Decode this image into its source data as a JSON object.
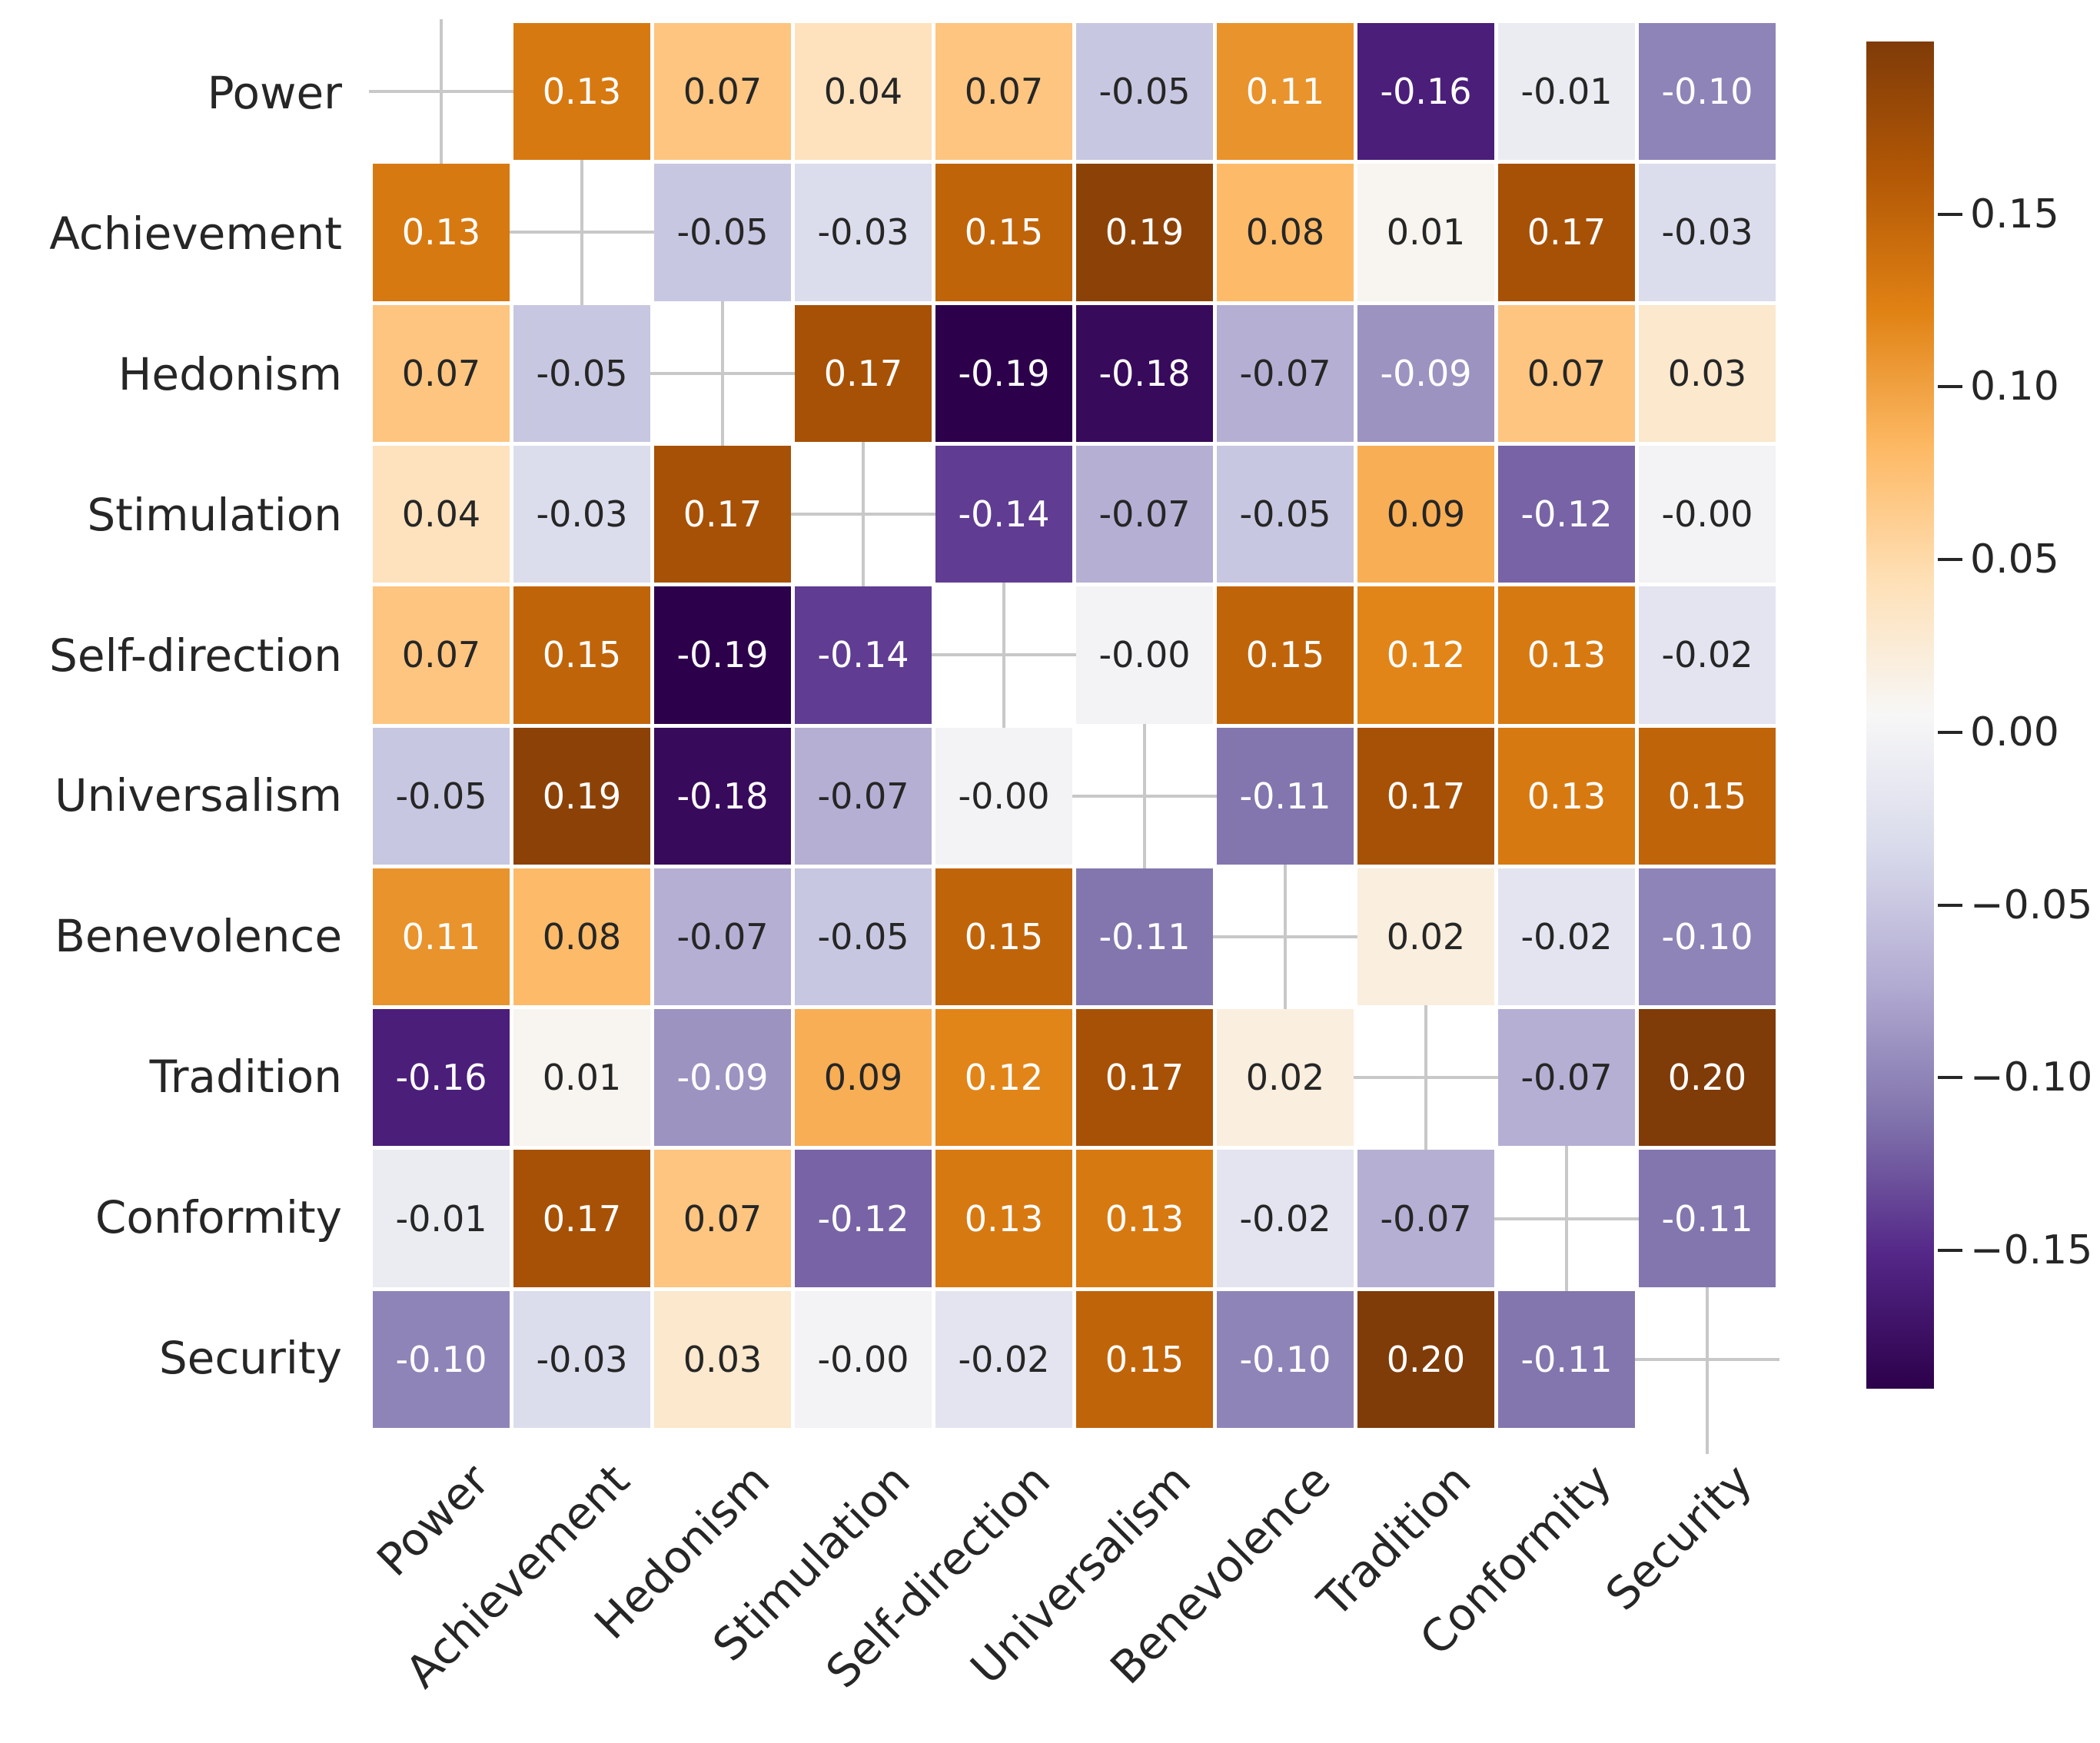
{
  "chart_data": {
    "type": "heatmap",
    "title": "",
    "xlabel": "",
    "ylabel": "",
    "categories": [
      "Power",
      "Achievement",
      "Hedonism",
      "Stimulation",
      "Self-direction",
      "Universalism",
      "Benevolence",
      "Tradition",
      "Conformity",
      "Security"
    ],
    "matrix": [
      [
        null,
        0.13,
        0.07,
        0.04,
        0.07,
        -0.05,
        0.11,
        -0.16,
        -0.01,
        -0.1
      ],
      [
        0.13,
        null,
        -0.05,
        -0.03,
        0.15,
        0.19,
        0.08,
        0.01,
        0.17,
        -0.03
      ],
      [
        0.07,
        -0.05,
        null,
        0.17,
        -0.19,
        -0.18,
        -0.07,
        -0.09,
        0.07,
        0.03
      ],
      [
        0.04,
        -0.03,
        0.17,
        null,
        -0.14,
        -0.07,
        -0.05,
        0.09,
        -0.12,
        -0.0
      ],
      [
        0.07,
        0.15,
        -0.19,
        -0.14,
        null,
        -0.0,
        0.15,
        0.12,
        0.13,
        -0.02
      ],
      [
        -0.05,
        0.19,
        -0.18,
        -0.07,
        -0.0,
        null,
        -0.11,
        0.17,
        0.13,
        0.15
      ],
      [
        0.11,
        0.08,
        -0.07,
        -0.05,
        0.15,
        -0.11,
        null,
        0.02,
        -0.02,
        -0.1
      ],
      [
        -0.16,
        0.01,
        -0.09,
        0.09,
        0.12,
        0.17,
        0.02,
        null,
        -0.07,
        0.2
      ],
      [
        -0.01,
        0.17,
        0.07,
        -0.12,
        0.13,
        0.13,
        -0.02,
        -0.07,
        null,
        -0.11
      ],
      [
        -0.1,
        -0.03,
        0.03,
        -0.0,
        -0.02,
        0.15,
        -0.1,
        0.2,
        -0.11,
        null
      ]
    ],
    "annotations": [
      [
        "",
        "0.13",
        "0.07",
        "0.04",
        "0.07",
        "-0.05",
        "0.11",
        "-0.16",
        "-0.01",
        "-0.10"
      ],
      [
        "0.13",
        "",
        "-0.05",
        "-0.03",
        "0.15",
        "0.19",
        "0.08",
        "0.01",
        "0.17",
        "-0.03"
      ],
      [
        "0.07",
        "-0.05",
        "",
        "0.17",
        "-0.19",
        "-0.18",
        "-0.07",
        "-0.09",
        "0.07",
        "0.03"
      ],
      [
        "0.04",
        "-0.03",
        "0.17",
        "",
        "-0.14",
        "-0.07",
        "-0.05",
        "0.09",
        "-0.12",
        "-0.00"
      ],
      [
        "0.07",
        "0.15",
        "-0.19",
        "-0.14",
        "",
        "-0.00",
        "0.15",
        "0.12",
        "0.13",
        "-0.02"
      ],
      [
        "-0.05",
        "0.19",
        "-0.18",
        "-0.07",
        "-0.00",
        "",
        "-0.11",
        "0.17",
        "0.13",
        "0.15"
      ],
      [
        "0.11",
        "0.08",
        "-0.07",
        "-0.05",
        "0.15",
        "-0.11",
        "",
        "0.02",
        "-0.02",
        "-0.10"
      ],
      [
        "-0.16",
        "0.01",
        "-0.09",
        "0.09",
        "0.12",
        "0.17",
        "0.02",
        "",
        "-0.07",
        "0.20"
      ],
      [
        "-0.01",
        "0.17",
        "0.07",
        "-0.12",
        "0.13",
        "0.13",
        "-0.02",
        "-0.07",
        "",
        "-0.11"
      ],
      [
        "-0.10",
        "-0.03",
        "0.03",
        "-0.00",
        "-0.02",
        "0.15",
        "-0.10",
        "0.20",
        "-0.11",
        ""
      ]
    ],
    "colormap": {
      "name": "PuOr_r",
      "vmin": -0.19,
      "vmax": 0.2,
      "stops_low_to_high": [
        "#2d004b",
        "#542788",
        "#8073ac",
        "#b2abd2",
        "#d8daeb",
        "#f7f7f7",
        "#fee0b6",
        "#fdb863",
        "#e08214",
        "#b35806",
        "#7f3b08"
      ]
    },
    "colorbar": {
      "position": "right",
      "tick_labels": [
        "0.15",
        "0.10",
        "0.05",
        "0.00",
        "−0.05",
        "−0.10",
        "−0.15"
      ],
      "tick_values": [
        0.15,
        0.1,
        0.05,
        0.0,
        -0.05,
        -0.1,
        -0.15
      ]
    },
    "masked_diagonal": true,
    "grid": false
  },
  "colors": {
    "background": "#ffffff",
    "annotation_dark": "#262626",
    "annotation_light": "#ffffff",
    "axis_label": "#262626",
    "diagonal_cross": "#c8c8c8",
    "colorbar_tick": "#262626"
  }
}
